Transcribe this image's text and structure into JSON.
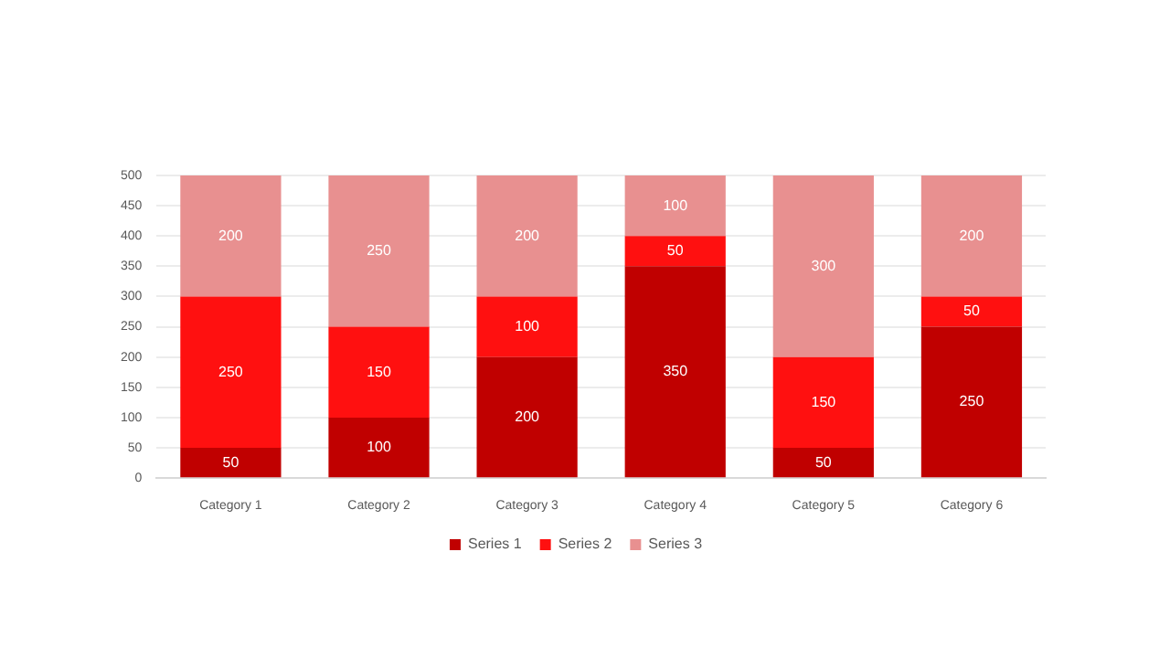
{
  "chart_data": {
    "type": "bar",
    "stacked": true,
    "categories": [
      "Category 1",
      "Category 2",
      "Category 3",
      "Category 4",
      "Category 5",
      "Category 6"
    ],
    "series": [
      {
        "name": "Series 1",
        "color": "#c00000",
        "values": [
          50,
          100,
          200,
          350,
          50,
          250
        ]
      },
      {
        "name": "Series 2",
        "color": "#ff1010",
        "values": [
          250,
          150,
          100,
          50,
          150,
          50
        ]
      },
      {
        "name": "Series 3",
        "color": "#e89090",
        "values": [
          200,
          250,
          200,
          100,
          300,
          200
        ]
      }
    ],
    "ylim": [
      0,
      500
    ],
    "yticks": [
      0,
      50,
      100,
      150,
      200,
      250,
      300,
      350,
      400,
      450,
      500
    ],
    "grid": "y",
    "legend": "bottom",
    "data_labels": true
  }
}
